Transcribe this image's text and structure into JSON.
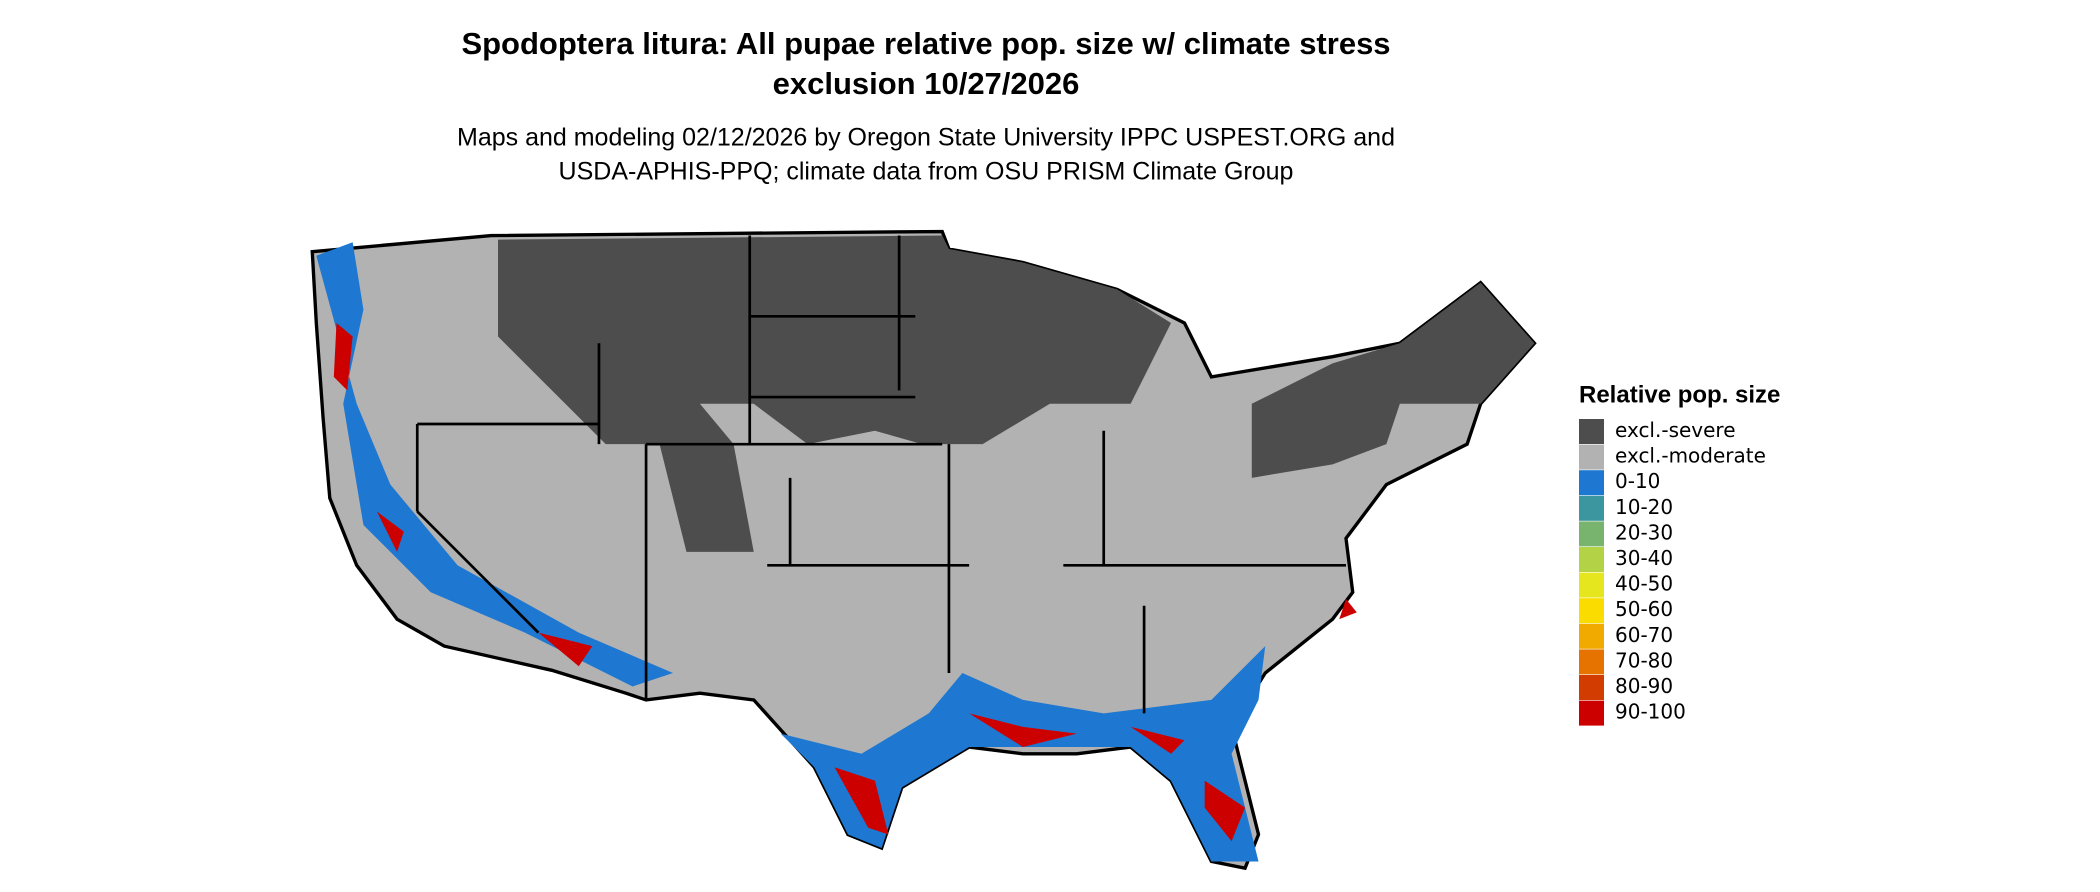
{
  "title": [
    "Spodoptera litura: All pupae relative pop. size w/ climate stress",
    "exclusion 10/27/2026"
  ],
  "subtitle": [
    "Maps and modeling 02/12/2026 by Oregon State University IPPC USPEST.ORG and",
    "USDA-APHIS-PPQ; climate data from OSU PRISM Climate Group"
  ],
  "legend": {
    "title": "Relative pop. size",
    "items": [
      {
        "label": "excl.-severe",
        "color": "#4d4d4d"
      },
      {
        "label": "excl.-moderate",
        "color": "#b2b2b2"
      },
      {
        "label": "0-10",
        "color": "#1e78d2"
      },
      {
        "label": "10-20",
        "color": "#3c96a0"
      },
      {
        "label": "20-30",
        "color": "#78b46e"
      },
      {
        "label": "30-40",
        "color": "#b4d246"
      },
      {
        "label": "40-50",
        "color": "#e6e61e"
      },
      {
        "label": "50-60",
        "color": "#fadc00"
      },
      {
        "label": "60-70",
        "color": "#f0aa00"
      },
      {
        "label": "70-80",
        "color": "#e67300"
      },
      {
        "label": "80-90",
        "color": "#d23c00"
      },
      {
        "label": "90-100",
        "color": "#cd0000"
      }
    ]
  }
}
